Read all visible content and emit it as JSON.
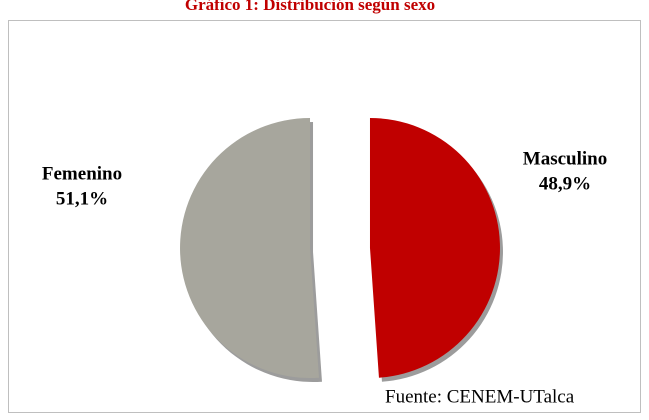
{
  "chart_data": {
    "type": "pie",
    "title": "Gráfico 1: Distribución según sexo",
    "categories": [
      "Masculino",
      "Femenino"
    ],
    "values": [
      48.9,
      51.1
    ],
    "value_labels": [
      "48,9%",
      "51,1%"
    ],
    "colors": [
      "#c00000",
      "#a7a69d"
    ],
    "source": "Fuente: CENEM-UTalca"
  }
}
